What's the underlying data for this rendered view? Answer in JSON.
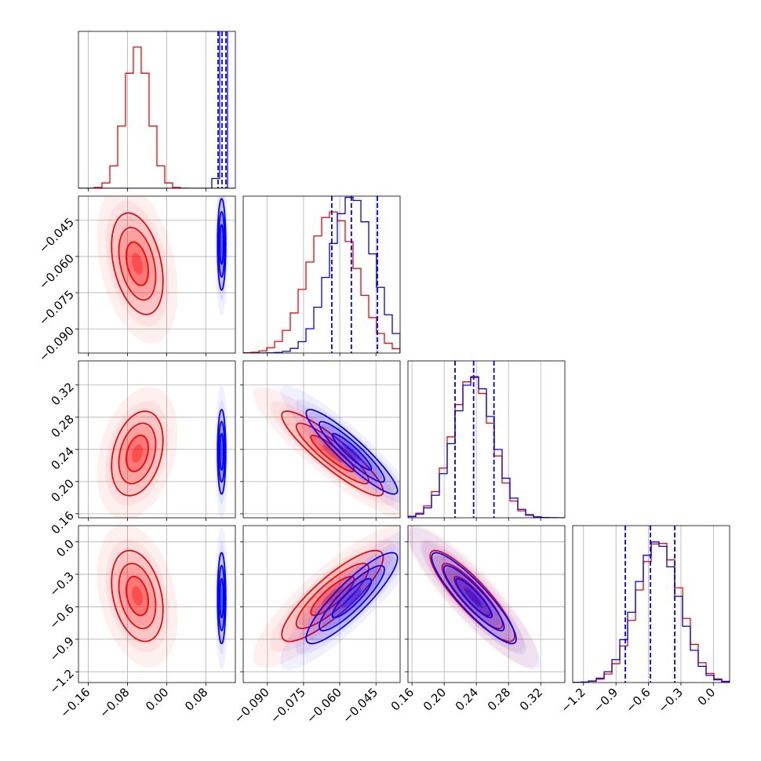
{
  "chart_data": {
    "type": "corner",
    "grid": true,
    "parameters": [
      {
        "lim": [
          -0.18,
          0.14
        ],
        "ticks": [
          {
            "value": -0.16,
            "label": "−0.16"
          },
          {
            "value": -0.08,
            "label": "−0.08"
          },
          {
            "value": 0,
            "label": "0.00"
          },
          0.08
        ]
      },
      {
        "lim": [
          -0.1,
          -0.035
        ],
        "ticks": [
          {
            "value": -0.09,
            "label": "−0.090"
          },
          {
            "value": -0.075,
            "label": "−0.075"
          },
          {
            "value": -0.06,
            "label": "−0.060"
          },
          {
            "value": -0.045,
            "label": "−0.045"
          }
        ]
      },
      {
        "lim": [
          0.155,
          0.35
        ],
        "ticks": [
          0.16,
          {
            "value": 0.2,
            "label": "0.20"
          },
          0.24,
          0.28,
          0.32
        ]
      },
      {
        "lim": [
          -1.3,
          0.15
        ],
        "ticks": [
          {
            "value": -1.2,
            "label": "−1.2"
          },
          {
            "value": -0.9,
            "label": "−0.9"
          },
          {
            "value": -0.6,
            "label": "−0.6"
          },
          {
            "value": -0.3,
            "label": "−0.3"
          },
          {
            "value": 0,
            "label": "0.0"
          }
        ]
      }
    ],
    "series": [
      {
        "color": "#ff0000",
        "means": [
          -0.06,
          -0.063,
          0.235,
          -0.5
        ],
        "sds": [
          0.025,
          0.01,
          0.025,
          0.2
        ],
        "corr": {
          "0-1": -0.35,
          "0-2": 0.3,
          "0-3": -0.3,
          "1-2": -0.9,
          "1-3": 0.85,
          "2-3": -0.88
        }
      },
      {
        "color": "#0000ff",
        "means": [
          0.112,
          -0.055,
          0.237,
          -0.52
        ],
        "sds": [
          0.004,
          0.009,
          0.025,
          0.2
        ],
        "corr": {
          "0-1": 0,
          "0-2": 0,
          "0-3": 0,
          "1-2": -0.92,
          "1-3": 0.88,
          "2-3": -0.9
        },
        "quantiles": [
          [
            0.1048,
            0.1128,
            0.1208
          ],
          [
            -0.0633,
            -0.0552,
            -0.0444
          ],
          [
            0.2135,
            0.2366,
            0.2619
          ],
          [
            -0.814,
            -0.582,
            -0.357
          ]
        ]
      }
    ]
  }
}
